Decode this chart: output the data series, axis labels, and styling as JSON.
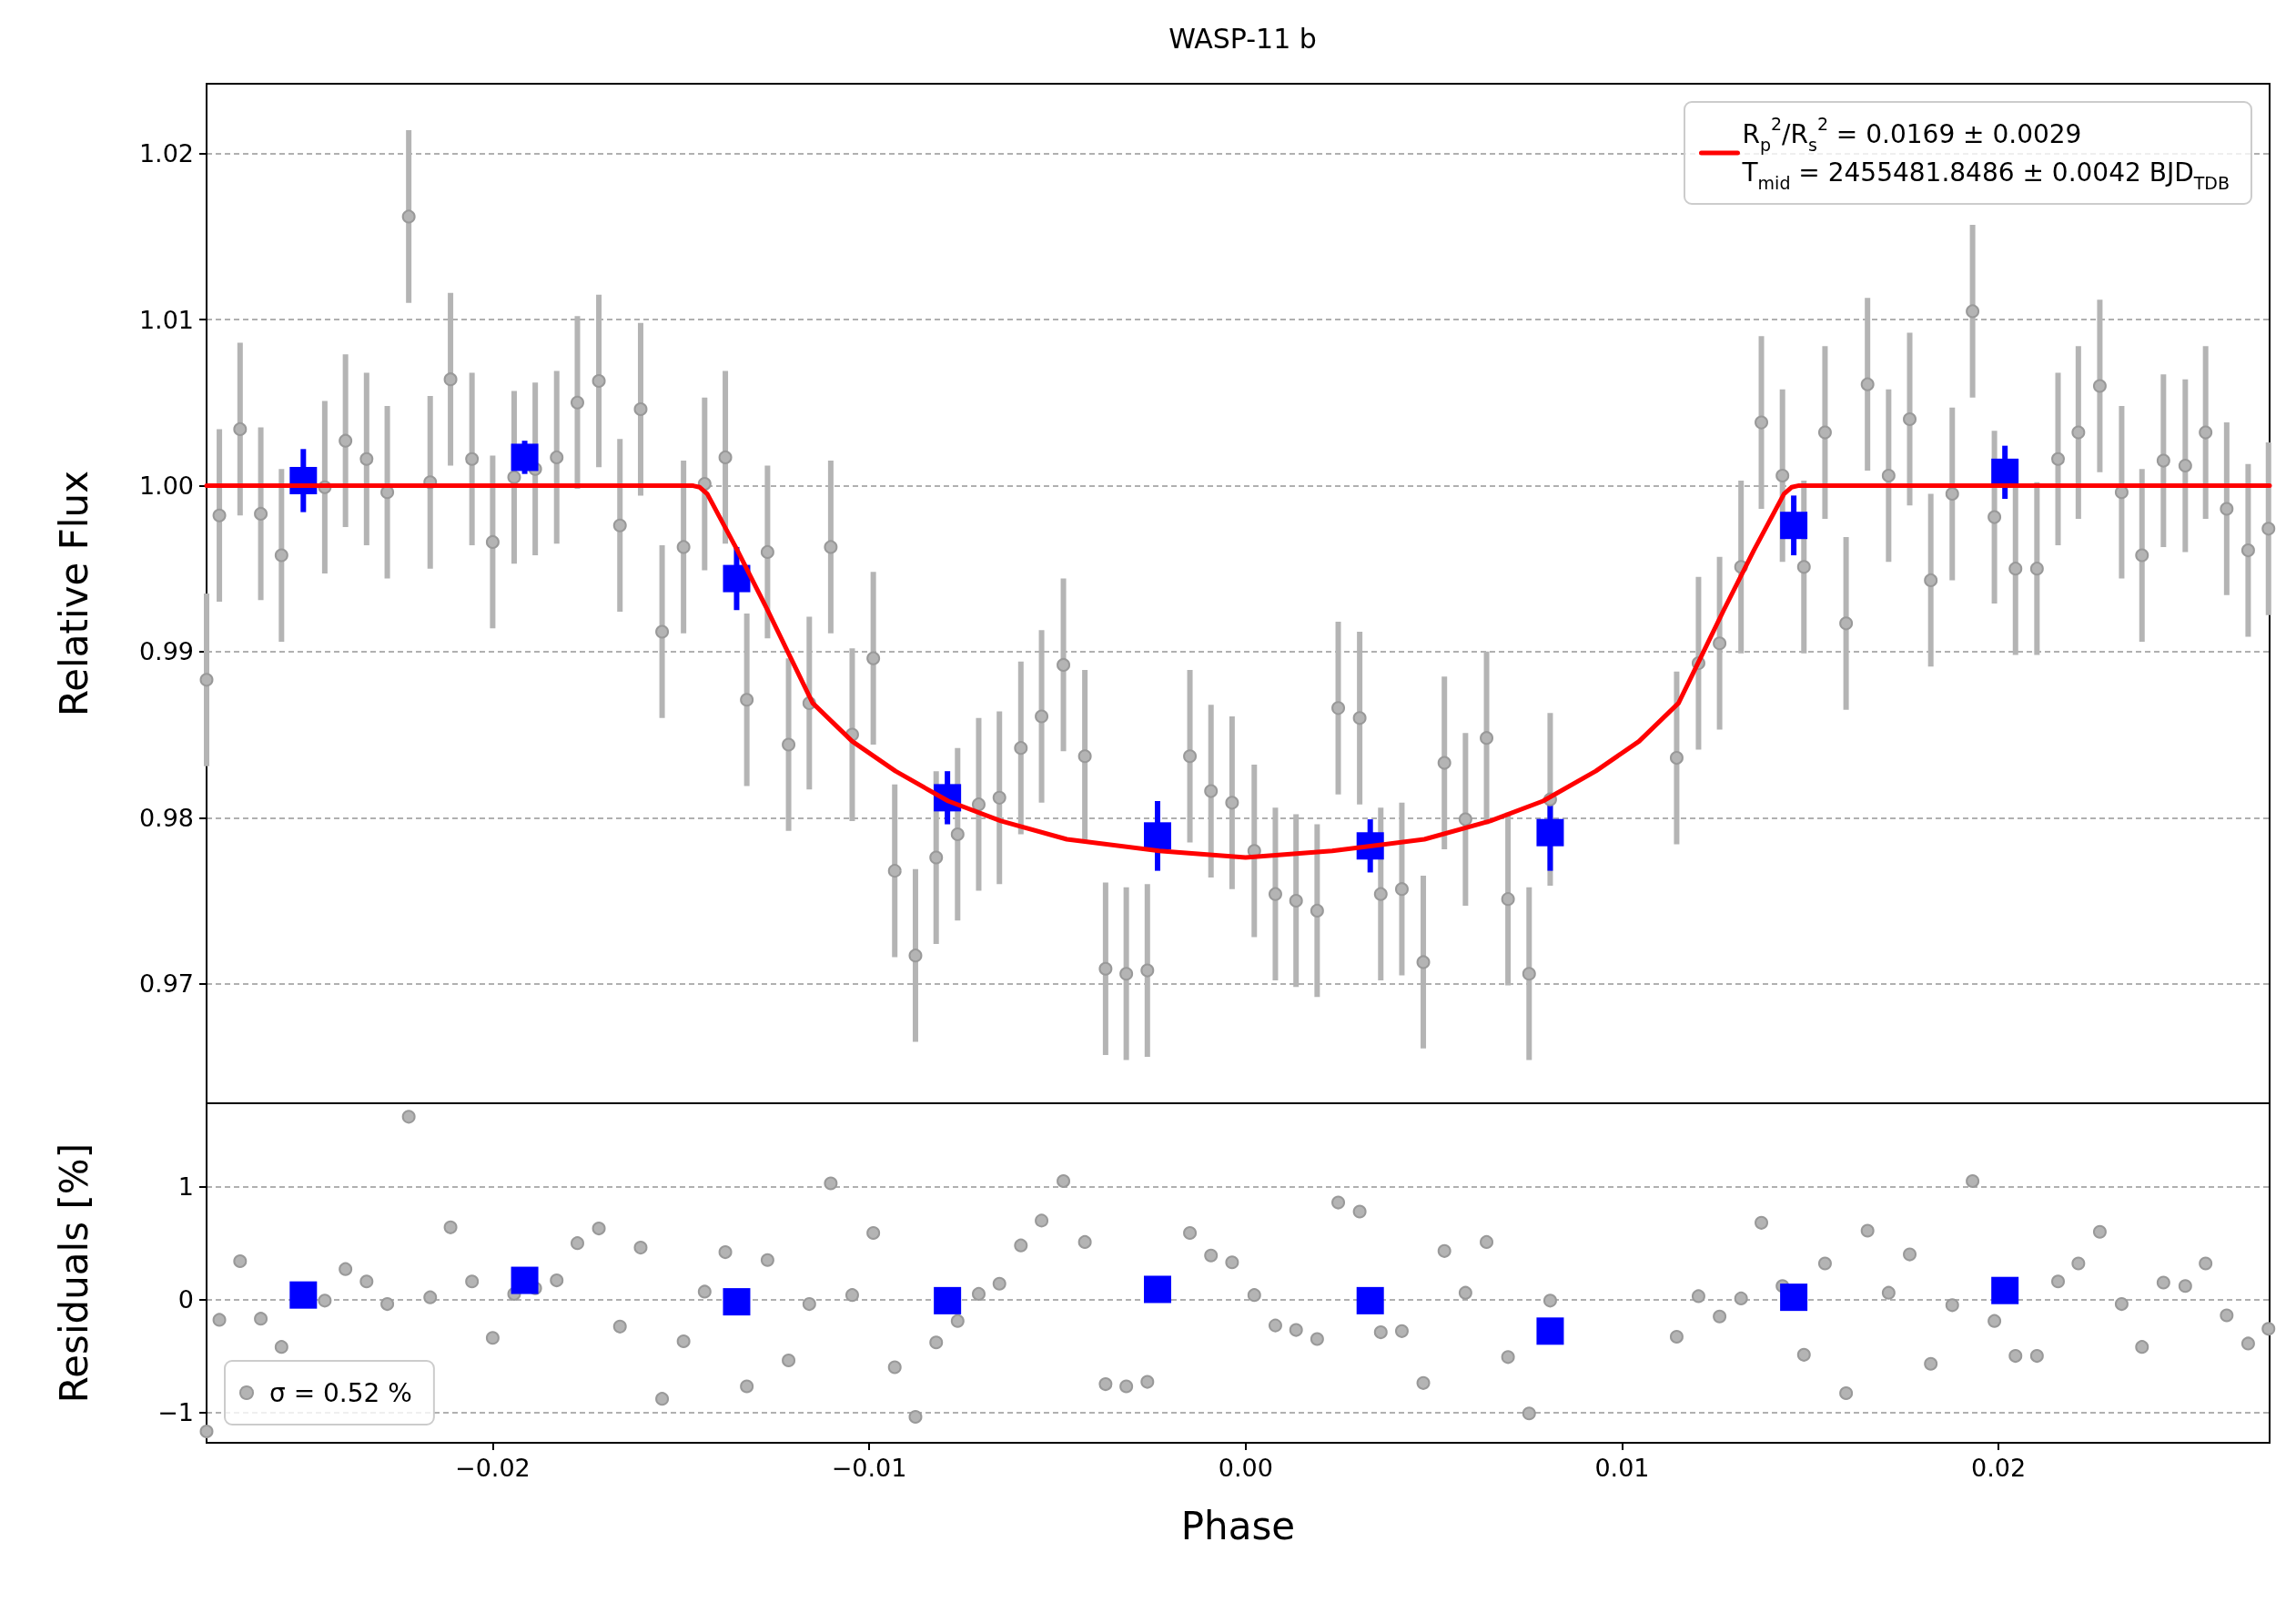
{
  "chart_data": [
    {
      "type": "scatter",
      "title": "WASP-11 b",
      "ylabel": "Relative Flux",
      "xlim": [
        -0.0276,
        0.0272
      ],
      "ylim": [
        0.9628,
        1.0242
      ],
      "xticks": [
        {
          "value": -0.02,
          "label": null
        },
        {
          "value": -0.01,
          "label": null
        },
        {
          "value": 0,
          "label": null
        },
        {
          "value": 0.01,
          "label": null
        },
        {
          "value": 0.02,
          "label": null
        }
      ],
      "yticks": [
        0.97,
        0.98,
        0.99,
        {
          "value": 1,
          "label": "1.00"
        },
        1.01,
        1.02
      ],
      "tick_labels": "y",
      "grid": "y",
      "legend": "top right",
      "series": [
        {
          "color": "#b4b4b4",
          "marker": "circle",
          "x": [
            -0.0276,
            -0.02726,
            -0.02671,
            -0.02616,
            -0.02561,
            -0.02503,
            -0.02446,
            -0.02391,
            -0.02335,
            -0.0228,
            -0.02223,
            -0.02166,
            -0.02112,
            -0.02055,
            -0.02,
            -0.01943,
            -0.01887,
            -0.0183,
            -0.01775,
            -0.01718,
            -0.01662,
            -0.01607,
            -0.0155,
            -0.01493,
            -0.01437,
            -0.01382,
            -0.01325,
            -0.0127,
            -0.01214,
            -0.01159,
            -0.01102,
            -0.01045,
            -0.00989,
            -0.00932,
            -0.00877,
            -0.00822,
            -0.00765,
            -0.00709,
            -0.00654,
            -0.00597,
            -0.00542,
            -0.00484,
            -0.00427,
            -0.00372,
            -0.00317,
            -0.00261,
            -0.00148,
            -0.00092,
            -0.00036,
            0.00023,
            0.00079,
            0.00134,
            0.0019,
            0.00246,
            0.00303,
            0.00359,
            0.00415,
            0.00472,
            0.00528,
            0.00584,
            0.0064,
            0.00697,
            0.00753,
            0.00809,
            0.01145,
            0.01203,
            0.01259,
            0.01316,
            0.0137,
            0.01426,
            0.01483,
            0.01539,
            0.01595,
            0.01652,
            0.01708,
            0.01764,
            0.0182,
            0.01877,
            0.01931,
            0.01989,
            0.02045,
            0.02102,
            0.02158,
            0.02212,
            0.02269,
            0.02327,
            0.02381,
            0.02438,
            0.02496,
            0.0255,
            0.02606,
            0.02663,
            0.02717
          ],
          "values": [
            0.9883,
            0.9982,
            1.0034,
            0.9983,
            0.9958,
            null,
            0.9999,
            1.0027,
            1.0016,
            0.9996,
            1.0162,
            1.0002,
            1.0064,
            1.0016,
            0.9966,
            1.0005,
            1.001,
            1.0017,
            1.005,
            1.0063,
            0.9976,
            1.0046,
            0.9912,
            0.9963,
            1.0001,
            1.0017,
            0.9871,
            0.996,
            0.9844,
            0.9869,
            0.9963,
            0.985,
            0.9896,
            0.9768,
            0.9717,
            0.9776,
            0.979,
            0.9808,
            0.9812,
            0.9842,
            0.9861,
            0.9892,
            0.9837,
            0.9709,
            0.9706,
            0.9708,
            0.9837,
            0.9816,
            0.9809,
            0.978,
            0.9754,
            0.975,
            0.9744,
            0.9866,
            0.986,
            0.9754,
            0.9757,
            0.9713,
            0.9833,
            0.9799,
            0.9848,
            0.9751,
            0.9706,
            0.9811,
            0.9836,
            0.9893,
            0.9905,
            0.9951,
            1.0038,
            1.0006,
            0.9951,
            1.0032,
            0.9917,
            1.0061,
            1.0006,
            1.004,
            0.9943,
            0.9995,
            1.0105,
            0.9981,
            0.995,
            0.995,
            1.0016,
            1.0032,
            1.006,
            0.9996,
            0.9958,
            1.0015,
            1.0012,
            1.0032,
            0.9986,
            0.9961,
            0.9974
          ],
          "errors": [
            0.0052,
            0.0052,
            0.0052,
            0.0052,
            0.0052,
            null,
            0.0052,
            0.0052,
            0.0052,
            0.0052,
            0.0052,
            0.0052,
            0.0052,
            0.0052,
            0.0052,
            0.0052,
            0.0052,
            0.0052,
            0.0052,
            0.0052,
            0.0052,
            0.0052,
            0.0052,
            0.0052,
            0.0052,
            0.0052,
            0.0052,
            0.0052,
            0.0052,
            0.0052,
            0.0052,
            0.0052,
            0.0052,
            0.0052,
            0.0052,
            0.0052,
            0.0052,
            0.0052,
            0.0052,
            0.0052,
            0.0052,
            0.0052,
            0.0052,
            0.0052,
            0.0052,
            0.0052,
            0.0052,
            0.0052,
            0.0052,
            0.0052,
            0.0052,
            0.0052,
            0.0052,
            0.0052,
            0.0052,
            0.0052,
            0.0052,
            0.0052,
            0.0052,
            0.0052,
            0.0052,
            0.0052,
            0.0052,
            0.0052,
            0.0052,
            0.0052,
            0.0052,
            0.0052,
            0.0052,
            0.0052,
            0.0052,
            0.0052,
            0.0052,
            0.0052,
            0.0052,
            0.0052,
            0.0052,
            0.0052,
            0.0052,
            0.0052,
            0.0052,
            0.0052,
            0.0052,
            0.0052,
            0.0052,
            0.0052,
            0.0052,
            0.0052,
            0.0052,
            0.0052,
            0.0052,
            0.0052,
            0.0052
          ]
        },
        {
          "color": "#0000ff",
          "marker": "square",
          "x": [
            -0.02503,
            -0.01915,
            -0.01352,
            -0.00792,
            -0.00234,
            0.00331,
            0.00809,
            0.01456,
            0.02017
          ],
          "values": [
            1.0003,
            1.0017,
            0.9944,
            0.9812,
            0.9789,
            0.9783,
            0.9791,
            0.9976,
            1.0008
          ],
          "errors": [
            0.0019,
            0.001,
            0.0019,
            0.0016,
            0.0021,
            0.0016,
            0.0023,
            0.0018,
            0.0016
          ]
        },
        {
          "type": "line",
          "name": "R$_{p}$$^{2}$/R$_{s}$$^{2}$ = 0.0169 ± 0.0029\nT$_{mid}$ = 2455481.8486 ± 0.0042 BJD$_{TDB}$",
          "color": "#ff0000",
          "marker": "none",
          "line_style": "solid",
          "x": [
            -0.0276,
            -0.0147,
            -0.0145,
            -0.0143,
            -0.0135,
            -0.0127,
            -0.0121,
            -0.0115,
            -0.01045,
            -0.0093,
            -0.0079,
            -0.0065,
            -0.00475,
            -0.0023,
            0,
            0.0023,
            0.00475,
            0.0065,
            0.0079,
            0.0093,
            0.01045,
            0.0115,
            0.0121,
            0.0127,
            0.0135,
            0.0143,
            0.0145,
            0.0147,
            0.0272
          ],
          "values": [
            1,
            1,
            0.9999,
            0.9995,
            0.9961,
            0.9925,
            0.9897,
            0.9869,
            0.9846,
            0.9828,
            0.981,
            0.9798,
            0.9787,
            0.978,
            0.9776,
            0.978,
            0.9787,
            0.9798,
            0.981,
            0.9828,
            0.9846,
            0.9869,
            0.9897,
            0.9925,
            0.9961,
            0.9995,
            0.9999,
            1,
            1
          ]
        }
      ]
    },
    {
      "type": "scatter",
      "xlabel": "Phase",
      "ylabel": "Residuals [%]",
      "xlim": [
        -0.0276,
        0.0272
      ],
      "ylim": [
        -1.27,
        1.74
      ],
      "xticks": [
        {
          "value": -0.02,
          "label": "−0.02"
        },
        {
          "value": -0.01,
          "label": "−0.01"
        },
        {
          "value": 0,
          "label": "0.00"
        },
        {
          "value": 0.01,
          "label": "0.01"
        },
        {
          "value": 0.02,
          "label": "0.02"
        }
      ],
      "yticks": [
        {
          "value": -1,
          "label": "−1"
        },
        0,
        1
      ],
      "grid": "y",
      "legend": "bottom left",
      "series": [
        {
          "name": "σ = 0.52 %",
          "color": "#b4b4b4",
          "marker": "circle",
          "x": [
            -0.0276,
            -0.02726,
            -0.02671,
            -0.02616,
            -0.02561,
            -0.02503,
            -0.02446,
            -0.02391,
            -0.02335,
            -0.0228,
            -0.02223,
            -0.02166,
            -0.02112,
            -0.02055,
            -0.02,
            -0.01943,
            -0.01887,
            -0.0183,
            -0.01775,
            -0.01718,
            -0.01662,
            -0.01607,
            -0.0155,
            -0.01493,
            -0.01437,
            -0.01382,
            -0.01325,
            -0.0127,
            -0.01214,
            -0.01159,
            -0.01102,
            -0.01045,
            -0.00989,
            -0.00932,
            -0.00877,
            -0.00822,
            -0.00765,
            -0.00709,
            -0.00654,
            -0.00597,
            -0.00542,
            -0.00484,
            -0.00427,
            -0.00372,
            -0.00317,
            -0.00261,
            -0.00148,
            -0.00092,
            -0.00036,
            0.00023,
            0.00079,
            0.00134,
            0.0019,
            0.00246,
            0.00303,
            0.00359,
            0.00415,
            0.00472,
            0.00528,
            0.00584,
            0.0064,
            0.00697,
            0.00753,
            0.00809,
            0.01145,
            0.01203,
            0.01259,
            0.01316,
            0.0137,
            0.01426,
            0.01483,
            0.01539,
            0.01595,
            0.01652,
            0.01708,
            0.01764,
            0.0182,
            0.01877,
            0.01931,
            0.01989,
            0.02045,
            0.02102,
            0.02158,
            0.02212,
            0.02269,
            0.02327,
            0.02381,
            0.02438,
            0.02496,
            0.0255,
            0.02606,
            0.02663,
            0.02717
          ],
          "values": [
            -1.17,
            -0.18,
            0.34,
            -0.17,
            -0.42,
            null,
            -0.01,
            0.27,
            0.16,
            -0.04,
            1.62,
            0.02,
            0.64,
            0.16,
            -0.34,
            0.05,
            0.1,
            0.17,
            0.5,
            0.63,
            -0.24,
            0.46,
            -0.88,
            -0.37,
            0.07,
            0.42,
            -0.77,
            0.35,
            -0.54,
            -0.04,
            1.03,
            0.04,
            0.59,
            -0.6,
            -1.04,
            -0.38,
            -0.19,
            0.05,
            0.14,
            0.48,
            0.7,
            1.05,
            0.51,
            -0.75,
            -0.77,
            -0.73,
            0.59,
            0.39,
            0.33,
            0.04,
            -0.23,
            -0.27,
            -0.35,
            0.86,
            0.78,
            -0.29,
            -0.28,
            -0.74,
            0.43,
            0.06,
            0.51,
            -0.51,
            -1.01,
            -0.01,
            -0.33,
            0.03,
            -0.15,
            0.01,
            0.68,
            0.12,
            -0.49,
            0.32,
            -0.83,
            0.61,
            0.06,
            0.4,
            -0.57,
            -0.05,
            1.05,
            -0.19,
            -0.5,
            -0.5,
            0.16,
            0.32,
            0.6,
            -0.04,
            -0.42,
            0.15,
            0.12,
            0.32,
            -0.14,
            -0.39,
            -0.26
          ]
        },
        {
          "color": "#0000ff",
          "marker": "square",
          "x": [
            -0.02503,
            -0.01915,
            -0.01352,
            -0.00792,
            -0.00234,
            0.00331,
            0.00809,
            0.01456,
            0.02017
          ],
          "values": [
            0.04,
            0.17,
            -0.02,
            -0.01,
            0.09,
            -0.01,
            -0.28,
            0.02,
            0.08
          ]
        }
      ]
    }
  ]
}
